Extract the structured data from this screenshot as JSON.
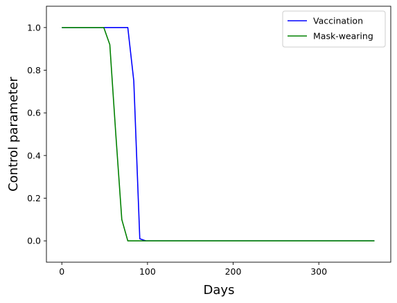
{
  "chart_data": {
    "type": "line",
    "xlabel": "Days",
    "ylabel": "Control parameter",
    "xlim": [
      -18,
      384
    ],
    "ylim": [
      -0.1,
      1.1
    ],
    "xticks": [
      0,
      100,
      200,
      300
    ],
    "yticks": [
      0.0,
      0.2,
      0.4,
      0.6,
      0.8,
      1.0
    ],
    "xtick_labels": [
      "0",
      "100",
      "200",
      "300"
    ],
    "ytick_labels": [
      "0.0",
      "0.2",
      "0.4",
      "0.6",
      "0.8",
      "1.0"
    ],
    "legend_position": "top-right",
    "grid": false,
    "series": [
      {
        "name": "Vaccination",
        "color": "#0000ff",
        "x": [
          0,
          77,
          84,
          91,
          98,
          365
        ],
        "y": [
          1.0,
          1.0,
          0.75,
          0.01,
          0.0,
          0.0
        ]
      },
      {
        "name": "Mask-wearing",
        "color": "#008000",
        "x": [
          0,
          49,
          56,
          63,
          70,
          77,
          365
        ],
        "y": [
          1.0,
          1.0,
          0.92,
          0.5,
          0.1,
          0.0,
          0.0
        ]
      }
    ]
  }
}
